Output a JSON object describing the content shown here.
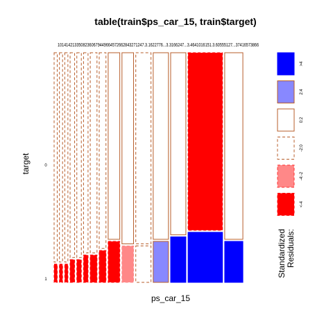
{
  "chart_data": {
    "type": "mosaic",
    "title": "table(train$ps_car_15, train$target)",
    "xlabel": "ps_car_15",
    "ylabel": "target",
    "row_levels": [
      "0",
      "1"
    ],
    "column_labels": [
      "1",
      "1.4142135",
      "1.7320508",
      "2",
      "2.2360679",
      "2.4494897",
      "2.6457513",
      "2.8284271",
      "3",
      "3.1622776",
      "3.3166247",
      "3.4641016",
      "3.6055512",
      "3.7416573",
      "3.8729833"
    ],
    "header_text": "10141421335082360679449664572662843271247.3.1622776...3.3166247...3.4641016151.3.60555127...37416573866",
    "top_labels_visible": [
      "1",
      "1.4142135",
      "1.7320508",
      "2",
      "2.2360679",
      "2.4494897",
      "2.6457513",
      "2.8284271",
      "3",
      "3.1622776",
      "3.3166247",
      "3.4641016",
      "3.6055512",
      "3.7416573",
      "3.8729833"
    ],
    "column_width_fractions": [
      0.018,
      0.018,
      0.018,
      0.026,
      0.026,
      0.026,
      0.039,
      0.039,
      0.067,
      0.067,
      0.088,
      0.088,
      0.088,
      0.199,
      0.105
    ],
    "target1_fraction": [
      0.02,
      0.02,
      0.02,
      0.025,
      0.025,
      0.03,
      0.03,
      0.035,
      0.045,
      0.04,
      0.04,
      0.045,
      0.05,
      0.055,
      0.045
    ],
    "residual_class_target0": [
      "-2:0",
      "-2:0",
      "-2:0",
      "-2:0",
      "-2:0",
      "-2:0",
      "-2:0",
      "-2:0",
      "0:2",
      "0:2",
      "-2:0",
      "0:2",
      "0:2",
      "<-4",
      "0:2"
    ],
    "residual_class_target1": [
      "<-4",
      "<-4",
      "<-4",
      "<-4",
      "<-4",
      "<-4",
      "<-4",
      "<-4",
      "<-4",
      "-4:-2",
      "-2:0",
      "2:4",
      ">4",
      ">4",
      ">4"
    ],
    "legend": {
      "title_line1": "Standardized",
      "title_line2": "Residuals:",
      "entries": [
        {
          "label": ">4",
          "fill": "#0000ff",
          "border": "#0000ff",
          "dashed": false
        },
        {
          "label": "2:4",
          "fill": "#8888ff",
          "border": "#b75d2a",
          "dashed": false
        },
        {
          "label": "0:2",
          "fill": "#ffffff",
          "border": "#b75d2a",
          "dashed": false
        },
        {
          "label": "-2:0",
          "fill": "#ffffff",
          "border": "#b75d2a",
          "dashed": true
        },
        {
          "label": "-4:-2",
          "fill": "#ff8888",
          "border": "#ff3333",
          "dashed": true
        },
        {
          "label": "<-4",
          "fill": "#ff0000",
          "border": "#ff0000",
          "dashed": true
        }
      ]
    },
    "colors": {
      "border": "#b75d2a",
      "strong_pos": "#0000ff",
      "pos": "#8888ff",
      "neg": "#ff8888",
      "strong_neg": "#ff0000"
    }
  }
}
